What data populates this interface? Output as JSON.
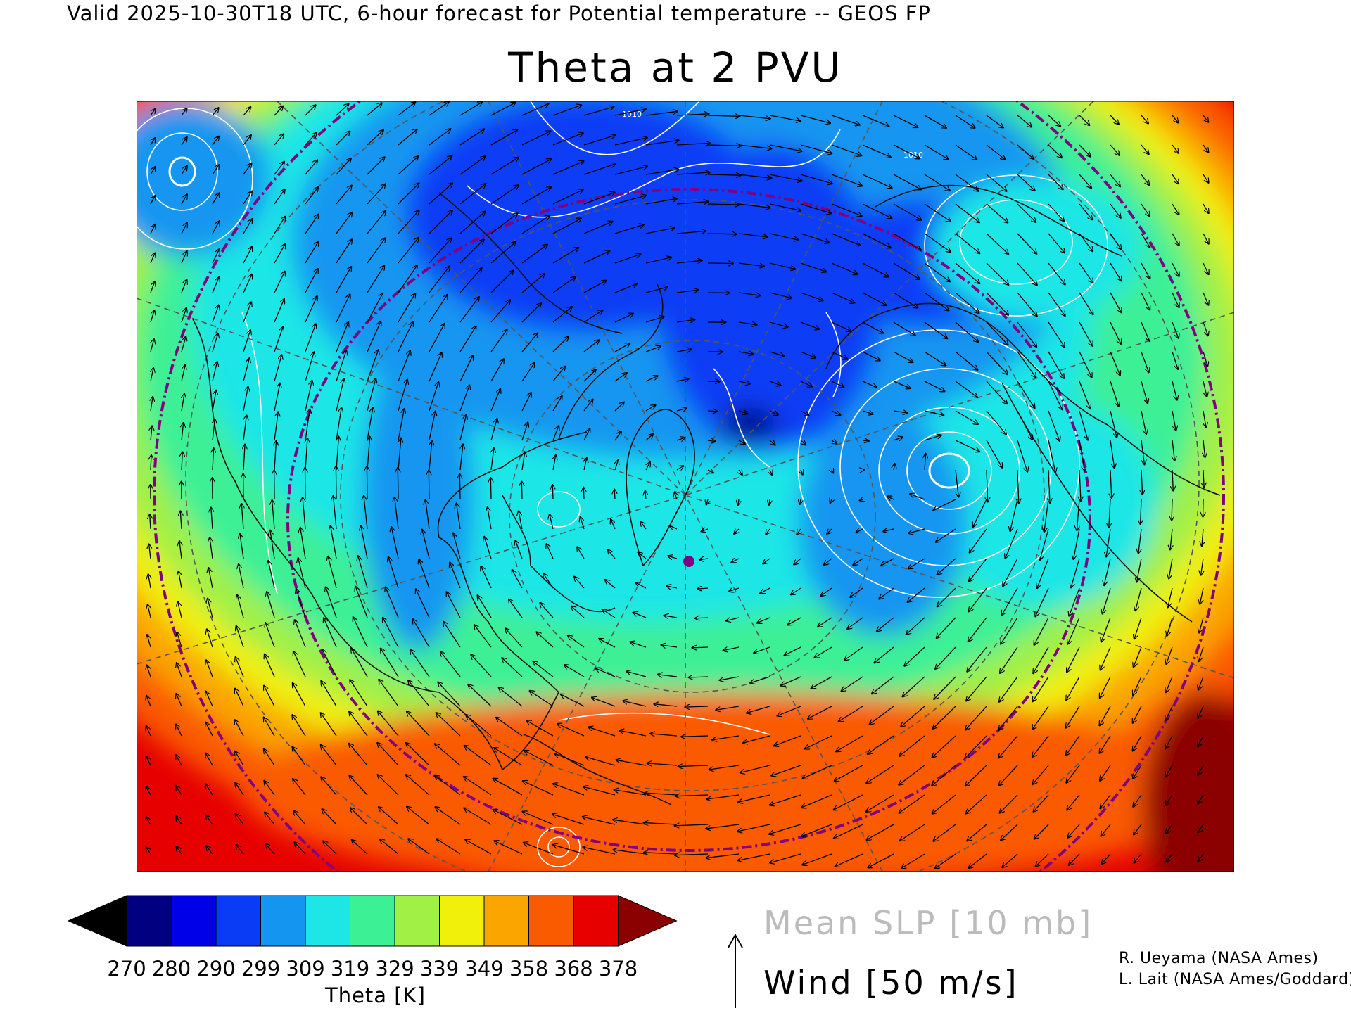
{
  "header": {
    "valid_line": "Valid 2025-10-30T18 UTC, 6-hour forecast for Potential temperature -- GEOS FP",
    "title": "Theta at 2 PVU"
  },
  "colorbar": {
    "ticks": [
      "270",
      "280",
      "290",
      "299",
      "309",
      "319",
      "329",
      "339",
      "349",
      "358",
      "368",
      "378"
    ],
    "units_label": "Theta [K]",
    "under_color": "#000000",
    "over_color": "#8b0000",
    "colors": [
      "#000080",
      "#0000e8",
      "#0a3cf5",
      "#1496f0",
      "#1ee6e6",
      "#3cf096",
      "#a0f046",
      "#f0f00a",
      "#faa500",
      "#fa5a00",
      "#e60000"
    ]
  },
  "legend": {
    "slp_label": "Mean SLP [10 mb]",
    "wind_label": "Wind [50 m/s]"
  },
  "credits": {
    "line1": "R. Ueyama (NASA Ames)",
    "line2": "L. Lait (NASA Ames/Goddard)"
  },
  "map": {
    "slp_contour_label": "1010",
    "theta_field_colors": {
      "cold_core": "#0a3cf5",
      "cold": "#1496f0",
      "cool": "#1ee6e6",
      "mid": "#3cf096",
      "warm": "#a0f046",
      "yellow": "#f0f00a",
      "orange": "#faa500",
      "hot": "#fa5a00",
      "hottest": "#e60000",
      "over": "#8b0000"
    },
    "latitude_circle_color": "#800080",
    "marker_color": "#800080"
  }
}
